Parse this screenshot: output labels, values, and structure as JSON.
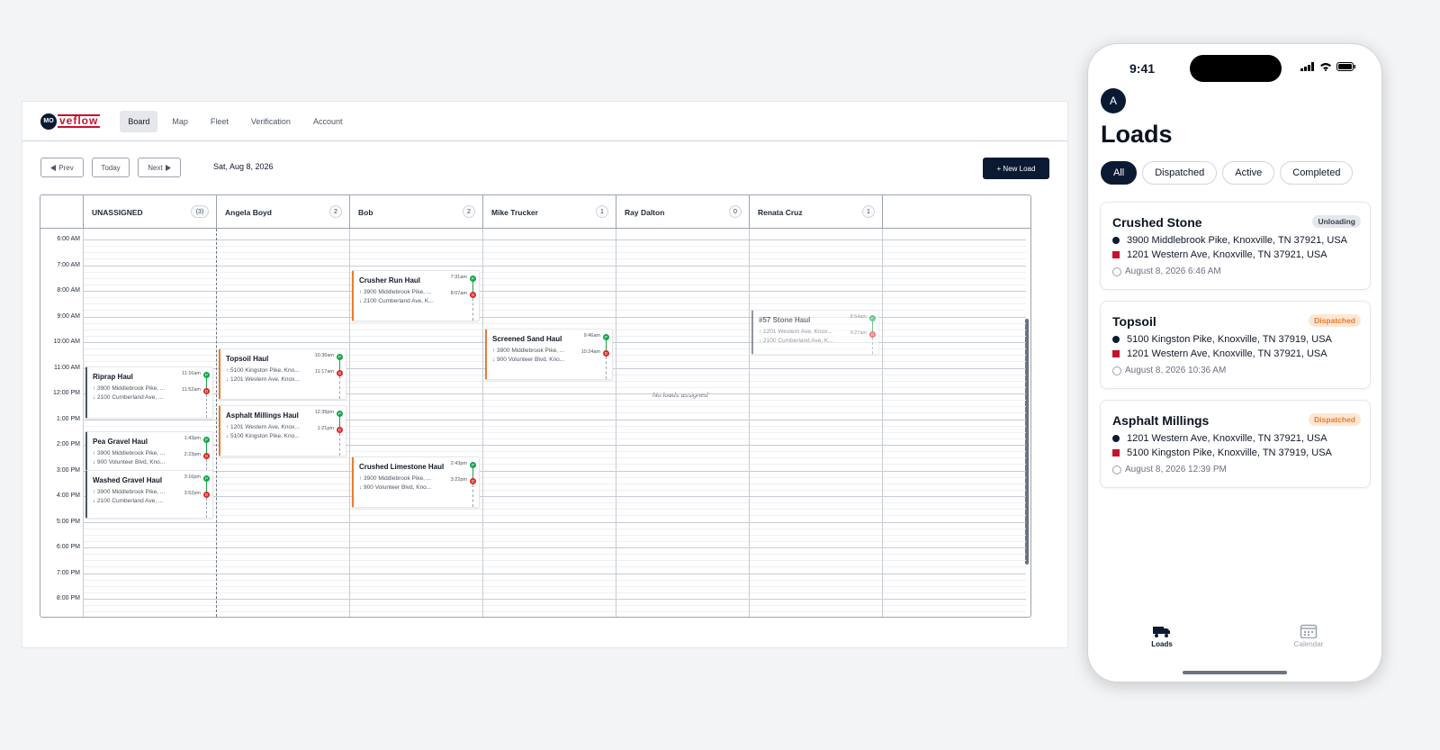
{
  "desktop": {
    "logo": {
      "mark": "MO",
      "word": "veflow"
    },
    "nav": [
      {
        "label": "Board",
        "active": true
      },
      {
        "label": "Map"
      },
      {
        "label": "Fleet"
      },
      {
        "label": "Verification"
      },
      {
        "label": "Account"
      }
    ],
    "toolbar": {
      "prev": "Prev",
      "today": "Today",
      "next": "Next",
      "date": "Sat, Aug 8, 2026",
      "new_load": "+ New Load"
    },
    "columns": [
      {
        "name": "UNASSIGNED",
        "count": "(3)"
      },
      {
        "name": "Angela Boyd",
        "count": "2"
      },
      {
        "name": "Bob",
        "count": "2"
      },
      {
        "name": "Mike Trucker",
        "count": "1"
      },
      {
        "name": "Ray Dalton",
        "count": "0"
      },
      {
        "name": "Renata Cruz",
        "count": "1"
      }
    ],
    "times": [
      "6:00 AM",
      "7:00 AM",
      "8:00 AM",
      "9:00 AM",
      "10:00 AM",
      "11:00 AM",
      "12:00 PM",
      "1:00 PM",
      "2:00 PM",
      "3:00 PM",
      "4:00 PM",
      "5:00 PM",
      "6:00 PM",
      "7:00 PM",
      "8:00 PM"
    ],
    "no_loads": "No loads assigned",
    "cards": [
      {
        "title": "Riprap Haul",
        "from": "↑ 3900 Middlebrook Pike, ...",
        "to": "↓ 2100 Cumberland Ave, ...",
        "t1": "11:16am",
        "t2": "11:52am"
      },
      {
        "title": "Pea Gravel Haul",
        "from": "↑ 3900 Middlebrook Pike, ...",
        "to": "↓ 900 Volunteer Blvd, Kno...",
        "t1": "1:43pm",
        "t2": "2:23pm"
      },
      {
        "title": "Washed Gravel Haul",
        "from": "↑ 3900 Middlebrook Pike, ...",
        "to": "↓ 2100 Cumberland Ave, ...",
        "t1": "3:16pm",
        "t2": "3:52pm"
      },
      {
        "title": "Topsoil Haul",
        "from": "↑ 5100 Kingston Pike, Kno...",
        "to": "↓ 1201 Western Ave, Knox...",
        "t1": "10:36am",
        "t2": "11:17am"
      },
      {
        "title": "Asphalt Millings Haul",
        "from": "↑ 1201 Western Ave, Knox...",
        "to": "↓ 5100 Kingston Pike, Kno...",
        "t1": "12:39pm",
        "t2": "1:21pm"
      },
      {
        "title": "Crusher Run Haul",
        "from": "↑ 3900 Middlebrook Pike, ...",
        "to": "↓ 2100 Cumberland Ave, K...",
        "t1": "7:31am",
        "t2": "8:07am"
      },
      {
        "title": "Crushed Limestone Haul",
        "from": "↑ 3900 Middlebrook Pike, ...",
        "to": "↓ 900 Volunteer Blvd, Kno...",
        "t1": "2:43pm",
        "t2": "3:22pm"
      },
      {
        "title": "Screened Sand Haul",
        "from": "↑ 3900 Middlebrook Pike, ...",
        "to": "↓ 900 Volunteer Blvd, Kno...",
        "t1": "9:46am",
        "t2": "10:24am"
      },
      {
        "title": "#57 Stone Haul",
        "from": "↑ 1201 Western Ave, Knox...",
        "to": "↓ 2100 Cumberland Ave, K...",
        "t1": "8:54am",
        "t2": "9:27am"
      }
    ],
    "pin_pickup": "P",
    "pin_dropoff": "D"
  },
  "phone": {
    "time": "9:41",
    "avatar": "A",
    "title": "Loads",
    "filters": [
      "All",
      "Dispatched",
      "Active",
      "Completed"
    ],
    "loads": [
      {
        "name": "Crushed Stone",
        "status": "Unloading",
        "pickup": "3900 Middlebrook Pike, Knoxville, TN 37921, USA",
        "dropoff": "1201 Western Ave, Knoxville, TN 37921, USA",
        "time": "August 8, 2026 6:46 AM"
      },
      {
        "name": "Topsoil",
        "status": "Dispatched",
        "pickup": "5100 Kingston Pike, Knoxville, TN 37919, USA",
        "dropoff": "1201 Western Ave, Knoxville, TN 37921, USA",
        "time": "August 8, 2026 10:36 AM"
      },
      {
        "name": "Asphalt Millings",
        "status": "Dispatched",
        "pickup": "1201 Western Ave, Knoxville, TN 37921, USA",
        "dropoff": "5100 Kingston Pike, Knoxville, TN 37919, USA",
        "time": "August 8, 2026 12:39 PM"
      }
    ],
    "tabs": [
      {
        "label": "Loads",
        "active": true
      },
      {
        "label": "Calendar"
      }
    ]
  },
  "colors": {
    "navy": "#0b1a33",
    "brand_red": "#c8102e",
    "accent_orange": "#ea7b2d",
    "pickup_green": "#16a34a",
    "dropoff_red": "#dc2626"
  }
}
